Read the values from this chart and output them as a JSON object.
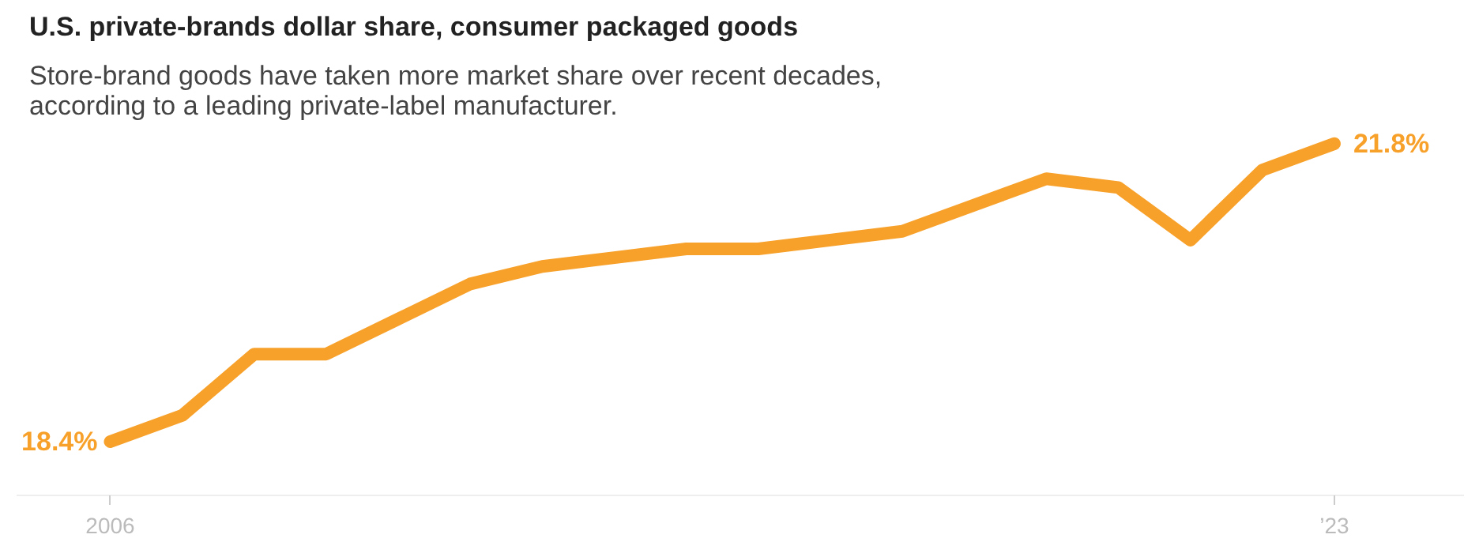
{
  "chart_data": {
    "type": "line",
    "title": "U.S. private-brands dollar share, consumer packaged goods",
    "subtitle": "Store-brand goods have taken more market share over recent decades, according to a leading private-label manufacturer.",
    "x": [
      2006,
      2007,
      2008,
      2009,
      2010,
      2011,
      2012,
      2013,
      2014,
      2015,
      2016,
      2017,
      2018,
      2019,
      2020,
      2021,
      2022,
      2023
    ],
    "series": [
      {
        "color": "#f7a12b",
        "values": [
          18.4,
          18.7,
          19.4,
          19.4,
          19.8,
          20.2,
          20.4,
          20.5,
          20.6,
          20.6,
          20.7,
          20.8,
          21.1,
          21.4,
          21.3,
          20.7,
          21.5,
          21.8
        ],
        "value_labels": [
          "18.4%",
          null,
          null,
          null,
          null,
          null,
          null,
          null,
          null,
          null,
          null,
          null,
          null,
          null,
          null,
          null,
          null,
          "21.8%"
        ]
      }
    ],
    "xticks": [
      2006,
      {
        "value": 2023,
        "label": "’23"
      }
    ],
    "xlim": [
      2004.7,
      2024.8
    ],
    "tick_labels": "x",
    "grid": false,
    "marker": "none",
    "line_style": "solid"
  }
}
